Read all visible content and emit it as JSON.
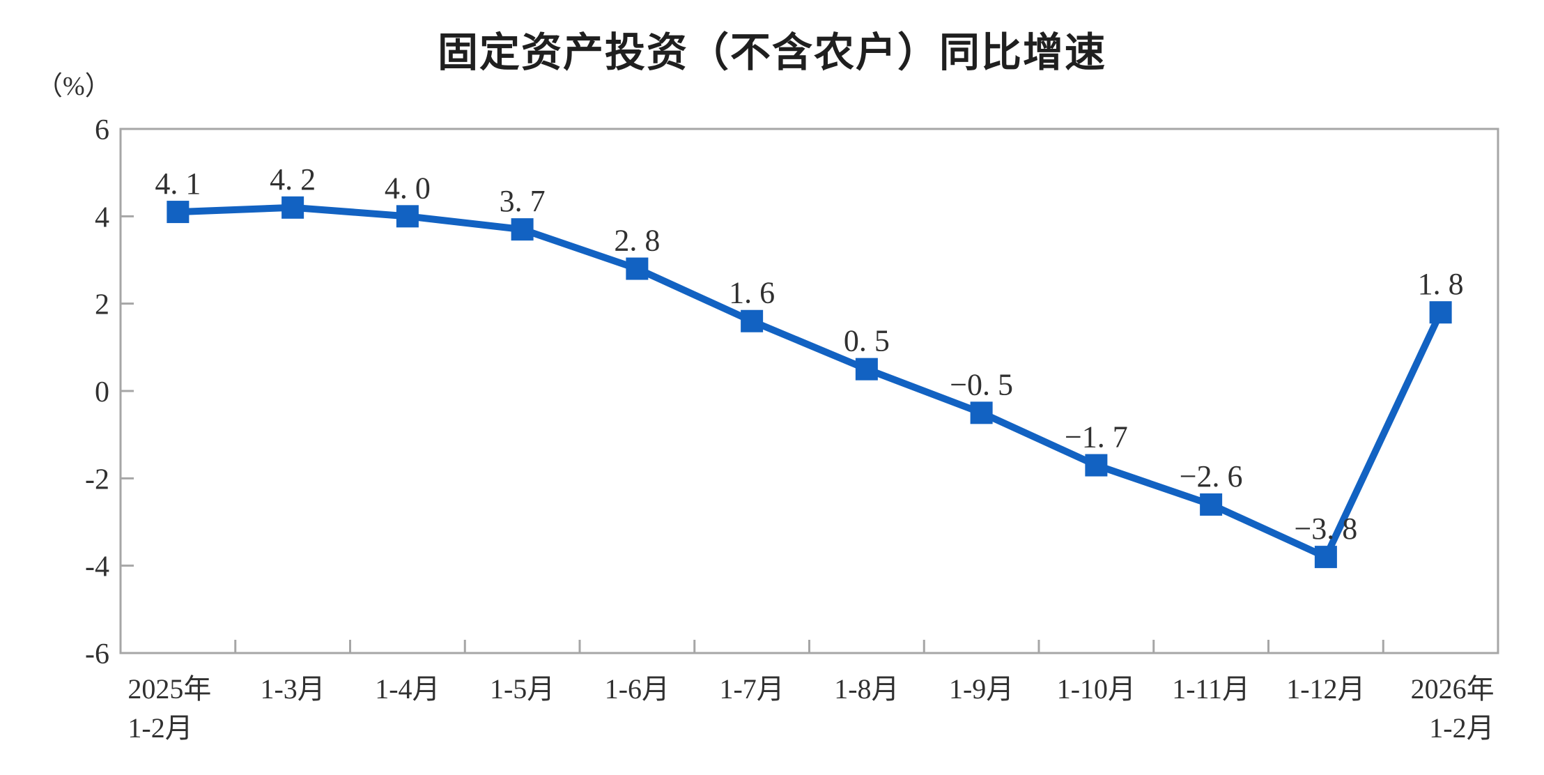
{
  "chart_data": {
    "type": "line",
    "title": "固定资产投资（不含农户）同比增速",
    "unit_label": "（%）",
    "categories": [
      "2025年\n1-2月",
      "1-3月",
      "1-4月",
      "1-5月",
      "1-6月",
      "1-7月",
      "1-8月",
      "1-9月",
      "1-10月",
      "1-11月",
      "1-12月",
      "2026年\n1-2月"
    ],
    "values": [
      4.1,
      4.2,
      4.0,
      3.7,
      2.8,
      1.6,
      0.5,
      -0.5,
      -1.7,
      -2.6,
      -3.8,
      1.8
    ],
    "point_labels": [
      "4. 1",
      "4. 2",
      "4. 0",
      "3. 7",
      "2. 8",
      "1. 6",
      "0. 5",
      "−0. 5",
      "−1. 7",
      "−2. 6",
      "−3. 8",
      "1. 8"
    ],
    "y_ticks": [
      "6",
      "4",
      "2",
      "0",
      "-2",
      "-4",
      "-6"
    ],
    "y_tick_values": [
      6,
      4,
      2,
      0,
      -2,
      -4,
      -6
    ],
    "ylim": [
      -6,
      6
    ],
    "grid": false,
    "legend": "none",
    "line_color": "#1262C2",
    "marker": "square",
    "axis_color": "#A6A6A6",
    "label_color": "#303030",
    "title_color": "#1f1f1f"
  }
}
